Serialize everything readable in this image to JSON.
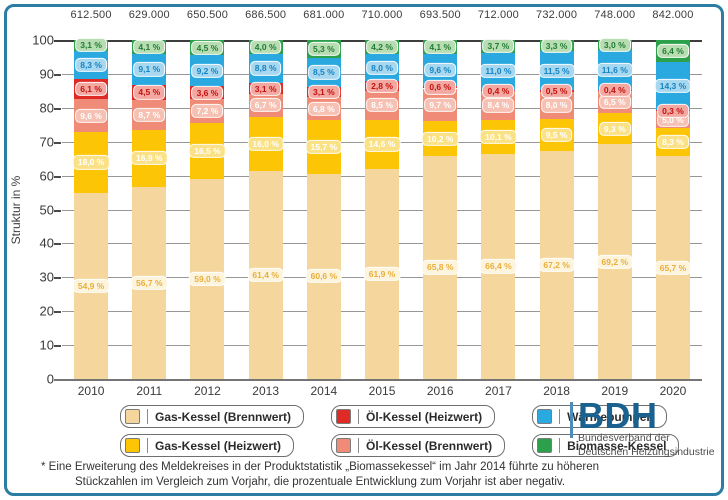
{
  "frame": {
    "border_color": "#2b7da3"
  },
  "chart_data": {
    "type": "bar",
    "subtype": "stacked-percentage",
    "title": "",
    "xlabel": "",
    "ylabel": "Struktur in %",
    "ylim": [
      0,
      100
    ],
    "y_ticks": [
      0,
      10,
      20,
      30,
      40,
      50,
      60,
      70,
      80,
      90,
      100
    ],
    "grid": true,
    "legend_position": "bottom",
    "categories": [
      "2010",
      "2011",
      "2012",
      "2013",
      "2014",
      "2015",
      "2016",
      "2017",
      "2018",
      "2019",
      "2020"
    ],
    "totals": [
      "612.500",
      "629.000",
      "650.500",
      "686.500",
      "681.000",
      "710.000",
      "693.500",
      "712.000",
      "732.000",
      "748.000",
      "842.000"
    ],
    "series": [
      {
        "name": "Gas-Kessel (Brennwert)",
        "color": "#F5D79E",
        "label_bg": "#FCF4DC",
        "label_color": "#E9AE3C",
        "values": [
          54.9,
          56.7,
          59.0,
          61.4,
          60.6,
          61.9,
          65.8,
          66.4,
          67.2,
          69.2,
          65.7
        ]
      },
      {
        "name": "Gas-Kessel (Heizwert)",
        "color": "#FCC606",
        "label_bg": "#FBE185",
        "label_color": "#FFFFFF",
        "values": [
          18.0,
          16.9,
          16.5,
          16.0,
          15.7,
          14.6,
          10.2,
          10.1,
          9.5,
          9.3,
          8.3
        ]
      },
      {
        "name": "Öl-Kessel (Brennwert)",
        "color": "#EF8B76",
        "label_bg": "#F6C0B2",
        "label_color": "#FFFFFF",
        "values": [
          9.6,
          8.7,
          7.2,
          6.7,
          6.8,
          8.5,
          9.7,
          8.4,
          8.0,
          6.5,
          5.0
        ]
      },
      {
        "name": "Öl-Kessel (Heizwert)",
        "color": "#DE2B26",
        "label_bg": "#F3A8A2",
        "label_color": "#C2120D",
        "values": [
          6.1,
          4.5,
          3.6,
          3.1,
          3.1,
          2.8,
          0.6,
          0.4,
          0.5,
          0.4,
          0.3
        ]
      },
      {
        "name": "Wärmepumpen",
        "color": "#29A9E0",
        "label_bg": "#A8D8F0",
        "label_color": "#1484C2",
        "values": [
          8.3,
          9.1,
          9.2,
          8.8,
          8.5,
          8.0,
          9.6,
          11.0,
          11.5,
          11.6,
          14.3
        ]
      },
      {
        "name": "Biomasse-Kessel",
        "color": "#2DA04B",
        "label_bg": "#B9DDB2",
        "label_color": "#1F7D35",
        "values": [
          3.1,
          4.1,
          4.5,
          4.0,
          5.3,
          4.2,
          4.1,
          3.7,
          3.3,
          3.0,
          6.4
        ]
      }
    ]
  },
  "legend": {
    "items": [
      {
        "label": "Gas-Kessel (Brennwert)",
        "color": "#F5D79E"
      },
      {
        "label": "Öl-Kessel (Heizwert)",
        "color": "#DE2B26"
      },
      {
        "label": "Wärmepumpen",
        "color": "#29A9E0"
      },
      {
        "label": "Gas-Kessel (Heizwert)",
        "color": "#FCC606"
      },
      {
        "label": "Öl-Kessel (Brennwert)",
        "color": "#EF8B76"
      },
      {
        "label": "Biomasse-Kessel",
        "color": "#2DA04B"
      }
    ]
  },
  "logo": {
    "acronym": "BDH",
    "line1": "Bundesverband der",
    "line2": "Deutschen Heizungsindustrie"
  },
  "footnote": {
    "line1": "* Eine Erweiterung des Meldekreises in der Produktstatistik „Biomassekessel“ im Jahr 2014 führte zu höheren",
    "line2": "Stückzahlen im Vergleich zum Vorjahr, die prozentuale Entwicklung zum Vorjahr ist aber negativ."
  }
}
